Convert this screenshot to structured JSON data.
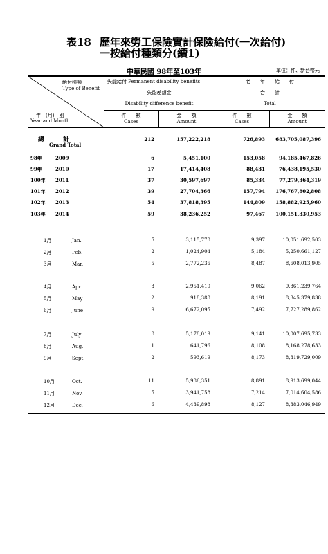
{
  "title": {
    "number": "表18",
    "line1": "歷年來勞工保險實計保險給付(一次給付)",
    "line2": "一按給付種類分(續1)"
  },
  "era": "中華民國 98年至103年",
  "unit": "單位：件、新台幣元",
  "header": {
    "benefit_type_zh": "給付種類",
    "benefit_type_en": "Type of Benefit",
    "year_month_zh": "年　(月)　別",
    "year_month_en": "Year and Month",
    "group1_zh": "失能給付",
    "group1_en": "Permanent disability benefits",
    "group2_zh": "老　　年　　給　　付",
    "sub1_zh": "失能差額金",
    "sub1_en": "Disability difference benefit",
    "sub2_zh": "合　　計",
    "sub2_en": "Total",
    "cases_zh": "件　　數",
    "cases_en": "Cases",
    "amount_zh": "金　　額",
    "amount_en": "Amount"
  },
  "grand_total": {
    "label_zh": "總　　　計",
    "label_en": "Grand Total",
    "cases1": "212",
    "amount1": "157,222,218",
    "cases2": "726,893",
    "amount2": "683,705,087,396"
  },
  "years": [
    {
      "roc": "98年",
      "ad": "2009",
      "cases1": "6",
      "amount1": "5,451,100",
      "cases2": "153,058",
      "amount2": "94,185,467,826"
    },
    {
      "roc": "99年",
      "ad": "2010",
      "cases1": "17",
      "amount1": "17,414,408",
      "cases2": "88,431",
      "amount2": "76,438,195,530"
    },
    {
      "roc": "100年",
      "ad": "2011",
      "cases1": "37",
      "amount1": "30,597,697",
      "cases2": "85,334",
      "amount2": "77,279,364,319"
    },
    {
      "roc": "101年",
      "ad": "2012",
      "cases1": "39",
      "amount1": "27,704,366",
      "cases2": "157,794",
      "amount2": "176,767,802,808"
    },
    {
      "roc": "102年",
      "ad": "2013",
      "cases1": "54",
      "amount1": "37,818,395",
      "cases2": "144,809",
      "amount2": "158,882,925,960"
    },
    {
      "roc": "103年",
      "ad": "2014",
      "cases1": "59",
      "amount1": "38,236,252",
      "cases2": "97,467",
      "amount2": "100,151,330,953"
    }
  ],
  "months": [
    {
      "zh": "1月",
      "en": "Jan.",
      "cases1": "5",
      "amount1": "3,115,778",
      "cases2": "9,397",
      "amount2": "10,051,692,503"
    },
    {
      "zh": "2月",
      "en": "Feb.",
      "cases1": "2",
      "amount1": "1,024,904",
      "cases2": "5,184",
      "amount2": "5,250,661,127"
    },
    {
      "zh": "3月",
      "en": "Mar.",
      "cases1": "5",
      "amount1": "2,772,236",
      "cases2": "8,487",
      "amount2": "8,608,013,905"
    },
    {
      "zh": "4月",
      "en": "Apr.",
      "cases1": "3",
      "amount1": "2,951,410",
      "cases2": "9,062",
      "amount2": "9,361,239,764"
    },
    {
      "zh": "5月",
      "en": "May",
      "cases1": "2",
      "amount1": "918,388",
      "cases2": "8,191",
      "amount2": "8,345,379,838"
    },
    {
      "zh": "6月",
      "en": "June",
      "cases1": "9",
      "amount1": "6,672,095",
      "cases2": "7,492",
      "amount2": "7,727,289,862"
    },
    {
      "zh": "7月",
      "en": "July",
      "cases1": "8",
      "amount1": "5,178,019",
      "cases2": "9,141",
      "amount2": "10,007,695,733"
    },
    {
      "zh": "8月",
      "en": "Aug.",
      "cases1": "1",
      "amount1": "641,796",
      "cases2": "8,108",
      "amount2": "8,168,278,633"
    },
    {
      "zh": "9月",
      "en": "Sept.",
      "cases1": "2",
      "amount1": "593,619",
      "cases2": "8,173",
      "amount2": "8,319,729,009"
    },
    {
      "zh": "10月",
      "en": "Oct.",
      "cases1": "11",
      "amount1": "5,986,351",
      "cases2": "8,891",
      "amount2": "8,913,699,044"
    },
    {
      "zh": "11月",
      "en": "Nov.",
      "cases1": "5",
      "amount1": "3,941,758",
      "cases2": "7,214",
      "amount2": "7,014,604,586"
    },
    {
      "zh": "12月",
      "en": "Dec.",
      "cases1": "6",
      "amount1": "4,439,898",
      "cases2": "8,127",
      "amount2": "8,383,046,949"
    }
  ]
}
